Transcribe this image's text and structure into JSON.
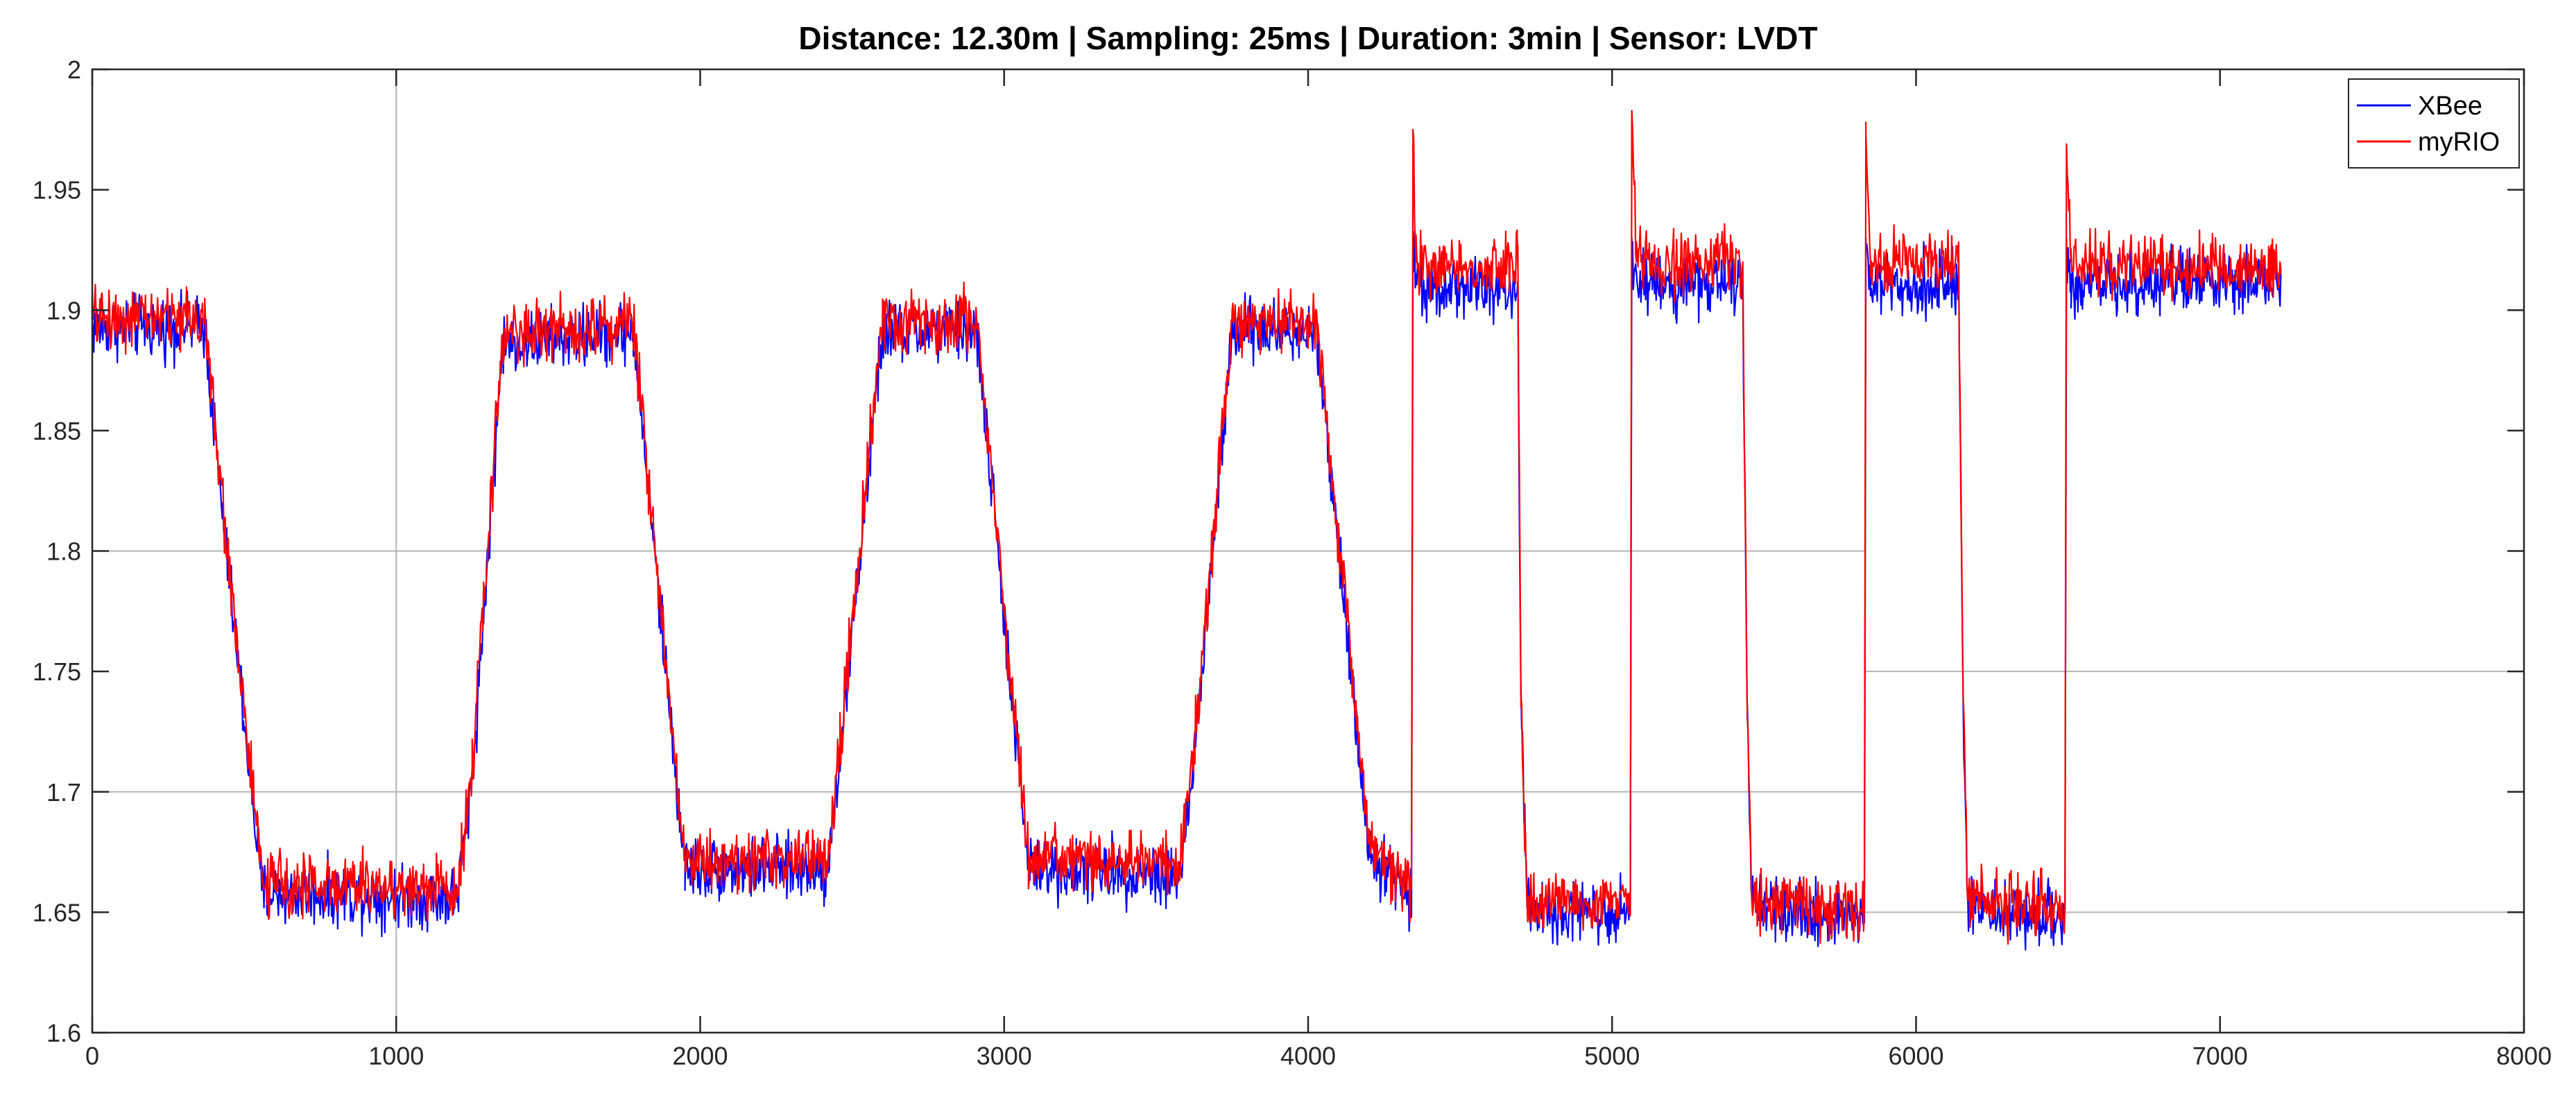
{
  "chart_data": {
    "type": "line",
    "title": "Distance: 12.30m | Sampling: 25ms | Duration: 3min | Sensor: LVDT",
    "xlabel": "",
    "ylabel": "",
    "xlim": [
      0,
      8000
    ],
    "ylim": [
      1.6,
      2.0
    ],
    "xticks": [
      0,
      1000,
      2000,
      3000,
      4000,
      5000,
      6000,
      7000,
      8000
    ],
    "xtick_labels": [
      "0",
      "1000",
      "2000",
      "3000",
      "4000",
      "5000",
      "6000",
      "7000",
      "8000"
    ],
    "yticks": [
      1.6,
      1.65,
      1.7,
      1.75,
      1.8,
      1.85,
      1.9,
      1.95,
      2.0
    ],
    "ytick_labels": [
      "1.6",
      "1.65",
      "1.7",
      "1.75",
      "1.8",
      "1.85",
      "1.9",
      "1.95",
      "2"
    ],
    "legend_position": "top-right",
    "reference_lines": [
      {
        "orientation": "vertical",
        "x": 1000,
        "y_range": [
          1.6,
          2.0
        ]
      },
      {
        "orientation": "horizontal",
        "y": 1.8,
        "x_range": [
          0,
          5830
        ]
      },
      {
        "orientation": "horizontal",
        "y": 1.7,
        "x_range": [
          0,
          5830
        ]
      },
      {
        "orientation": "horizontal",
        "y": 1.75,
        "x_range": [
          5830,
          8000
        ]
      },
      {
        "orientation": "horizontal",
        "y": 1.65,
        "x_range": [
          5830,
          8000
        ]
      }
    ],
    "series": [
      {
        "name": "XBee",
        "color": "#0000ff",
        "noise": 0.011,
        "offset": -0.004,
        "x": [
          0,
          370,
          420,
          560,
          1200,
          1250,
          1350,
          1780,
          1830,
          1950,
          2420,
          2460,
          2600,
          2910,
          2960,
          3080,
          3580,
          3620,
          3750,
          4030,
          4080,
          4200,
          4340,
          4345,
          4355,
          4600,
          4690,
          4700,
          4720,
          5060,
          5065,
          5080,
          5430,
          5445,
          5460,
          5830,
          5835,
          5850,
          6140,
          6155,
          6170,
          6490,
          6495,
          6510,
          7200
        ],
        "y": [
          1.897,
          1.897,
          1.83,
          1.662,
          1.66,
          1.71,
          1.89,
          1.895,
          1.83,
          1.672,
          1.672,
          1.72,
          1.895,
          1.895,
          1.83,
          1.672,
          1.67,
          1.71,
          1.895,
          1.895,
          1.83,
          1.68,
          1.66,
          1.93,
          1.915,
          1.912,
          1.912,
          1.74,
          1.655,
          1.655,
          1.93,
          1.915,
          1.915,
          1.73,
          1.655,
          1.652,
          1.93,
          1.915,
          1.915,
          1.74,
          1.655,
          1.652,
          1.93,
          1.915,
          1.915
        ]
      },
      {
        "name": "myRIO",
        "color": "#ff0000",
        "noise": 0.011,
        "offset": 0.0,
        "x": [
          0,
          370,
          420,
          560,
          1200,
          1250,
          1350,
          1780,
          1830,
          1950,
          2420,
          2460,
          2600,
          2910,
          2960,
          3080,
          3580,
          3620,
          3750,
          4030,
          4080,
          4200,
          4340,
          4345,
          4355,
          4600,
          4690,
          4700,
          4720,
          5060,
          5065,
          5080,
          5430,
          5445,
          5460,
          5830,
          5835,
          5850,
          6140,
          6155,
          6170,
          6490,
          6495,
          6510,
          7200
        ],
        "y": [
          1.897,
          1.897,
          1.83,
          1.662,
          1.66,
          1.71,
          1.89,
          1.895,
          1.83,
          1.672,
          1.672,
          1.72,
          1.895,
          1.895,
          1.83,
          1.672,
          1.67,
          1.71,
          1.895,
          1.895,
          1.83,
          1.68,
          1.66,
          1.975,
          1.92,
          1.917,
          1.917,
          1.74,
          1.655,
          1.655,
          1.98,
          1.92,
          1.92,
          1.73,
          1.655,
          1.652,
          1.978,
          1.92,
          1.92,
          1.74,
          1.655,
          1.652,
          1.968,
          1.92,
          1.917
        ]
      }
    ]
  }
}
